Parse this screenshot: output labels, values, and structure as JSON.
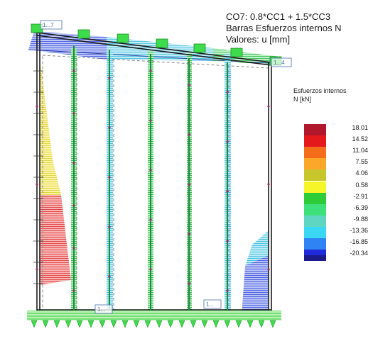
{
  "info": {
    "combination": "CO7: 0.8*CC1 + 1.5*CC3",
    "result_type": "Barras Esfuerzos internos N",
    "values_unit": "Valores: u [mm]"
  },
  "legend": {
    "title_line1": "Esfuerzos internos",
    "title_line2": "N [kN]",
    "levels": [
      {
        "value": "18.01",
        "color": "#b2182b"
      },
      {
        "value": "14.52",
        "color": "#e3191c"
      },
      {
        "value": "11.04",
        "color": "#f46d1a"
      },
      {
        "value": "7.55",
        "color": "#fba72a"
      },
      {
        "value": "4.06",
        "color": "#c7c72c"
      },
      {
        "value": "0.58",
        "color": "#f6f52a"
      },
      {
        "value": "-2.91",
        "color": "#2fcc3a"
      },
      {
        "value": "-6.39",
        "color": "#3ee07a"
      },
      {
        "value": "-9.88",
        "color": "#5fd6c2"
      },
      {
        "value": "-13.36",
        "color": "#3ad8f4"
      },
      {
        "value": "-16.85",
        "color": "#2f83f3"
      },
      {
        "value": "-20.34",
        "color": "#1f2ad8"
      }
    ],
    "bottom_color": "#1b1a8a"
  },
  "model": {
    "node_labels": [
      "1...7",
      "1...4",
      "1...",
      "1..."
    ]
  }
}
